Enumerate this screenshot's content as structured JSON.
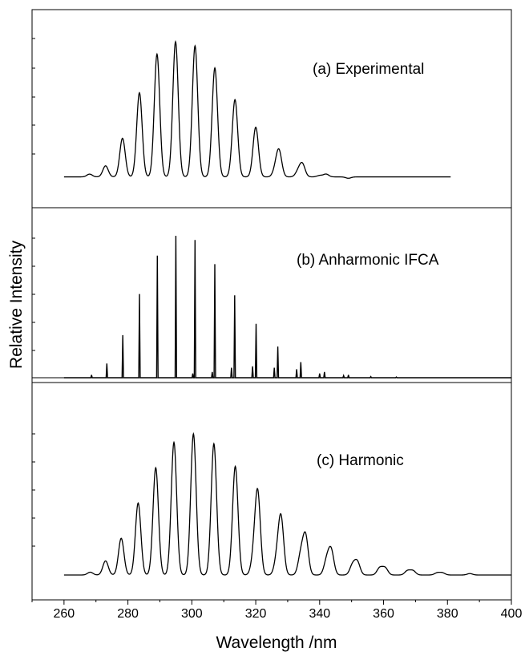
{
  "chart_data": {
    "type": "line",
    "xlabel": "Wavelength /nm",
    "ylabel": "Relative Intensity",
    "xlim": [
      250,
      400
    ],
    "x_ticks": [
      260,
      280,
      300,
      320,
      340,
      360,
      380,
      400
    ],
    "tick_labels": [
      "260",
      "280",
      "300",
      "320",
      "340",
      "360",
      "380",
      "400"
    ],
    "grid": false,
    "panels": [
      {
        "name": "(a) Experimental",
        "style": "broad",
        "x_range": [
          260,
          381
        ],
        "baseline": 0.02,
        "peaks": [
          {
            "x": 268.0,
            "y": 0.04
          },
          {
            "x": 273.0,
            "y": 0.1
          },
          {
            "x": 278.3,
            "y": 0.3
          },
          {
            "x": 283.6,
            "y": 0.63
          },
          {
            "x": 289.1,
            "y": 0.91
          },
          {
            "x": 294.9,
            "y": 1.0
          },
          {
            "x": 301.0,
            "y": 0.97
          },
          {
            "x": 307.2,
            "y": 0.81
          },
          {
            "x": 313.5,
            "y": 0.58
          },
          {
            "x": 320.0,
            "y": 0.38
          },
          {
            "x": 326.2,
            "y": 0.07
          },
          {
            "x": 327.3,
            "y": 0.2
          },
          {
            "x": 333.3,
            "y": 0.06
          },
          {
            "x": 334.6,
            "y": 0.11
          },
          {
            "x": 340.0,
            "y": 0.03
          },
          {
            "x": 342.0,
            "y": 0.04
          },
          {
            "x": 349.0,
            "y": 0.01
          }
        ]
      },
      {
        "name": "(b) Anharmonic IFCA",
        "style": "sticks",
        "x_range": [
          260,
          400
        ],
        "baseline": 0.0,
        "peaks": [
          {
            "x": 268.6,
            "y": 0.02
          },
          {
            "x": 273.4,
            "y": 0.1
          },
          {
            "x": 278.4,
            "y": 0.3
          },
          {
            "x": 283.6,
            "y": 0.59
          },
          {
            "x": 289.2,
            "y": 0.86
          },
          {
            "x": 295.0,
            "y": 1.0
          },
          {
            "x": 300.3,
            "y": 0.03
          },
          {
            "x": 301.0,
            "y": 0.97
          },
          {
            "x": 306.4,
            "y": 0.04
          },
          {
            "x": 307.2,
            "y": 0.8
          },
          {
            "x": 312.4,
            "y": 0.07
          },
          {
            "x": 313.4,
            "y": 0.58
          },
          {
            "x": 319.0,
            "y": 0.08
          },
          {
            "x": 320.1,
            "y": 0.38
          },
          {
            "x": 325.8,
            "y": 0.07
          },
          {
            "x": 326.9,
            "y": 0.22
          },
          {
            "x": 332.8,
            "y": 0.06
          },
          {
            "x": 334.1,
            "y": 0.11
          },
          {
            "x": 340.0,
            "y": 0.03
          },
          {
            "x": 341.5,
            "y": 0.04
          },
          {
            "x": 347.5,
            "y": 0.015
          },
          {
            "x": 349.0,
            "y": 0.02
          },
          {
            "x": 356.0,
            "y": 0.008
          },
          {
            "x": 364.0,
            "y": 0.005
          }
        ]
      },
      {
        "name": "(c) Harmonic",
        "style": "broad",
        "x_range": [
          260,
          400
        ],
        "baseline": 0.0,
        "peaks": [
          {
            "x": 268.2,
            "y": 0.02
          },
          {
            "x": 273.0,
            "y": 0.1
          },
          {
            "x": 277.9,
            "y": 0.26
          },
          {
            "x": 283.2,
            "y": 0.51
          },
          {
            "x": 288.7,
            "y": 0.76
          },
          {
            "x": 294.4,
            "y": 0.94
          },
          {
            "x": 300.5,
            "y": 1.0
          },
          {
            "x": 306.9,
            "y": 0.93
          },
          {
            "x": 313.6,
            "y": 0.77
          },
          {
            "x": 319.3,
            "y": 0.1
          },
          {
            "x": 320.6,
            "y": 0.58
          },
          {
            "x": 326.6,
            "y": 0.1
          },
          {
            "x": 327.9,
            "y": 0.4
          },
          {
            "x": 334.1,
            "y": 0.14
          },
          {
            "x": 335.6,
            "y": 0.27
          },
          {
            "x": 342.2,
            "y": 0.1
          },
          {
            "x": 343.6,
            "y": 0.17
          },
          {
            "x": 350.3,
            "y": 0.07
          },
          {
            "x": 351.8,
            "y": 0.09
          },
          {
            "x": 358.8,
            "y": 0.05
          },
          {
            "x": 360.5,
            "y": 0.05
          },
          {
            "x": 367.5,
            "y": 0.03
          },
          {
            "x": 369.2,
            "y": 0.03
          },
          {
            "x": 376.8,
            "y": 0.015
          },
          {
            "x": 378.4,
            "y": 0.015
          },
          {
            "x": 387.0,
            "y": 0.01
          }
        ]
      }
    ]
  }
}
